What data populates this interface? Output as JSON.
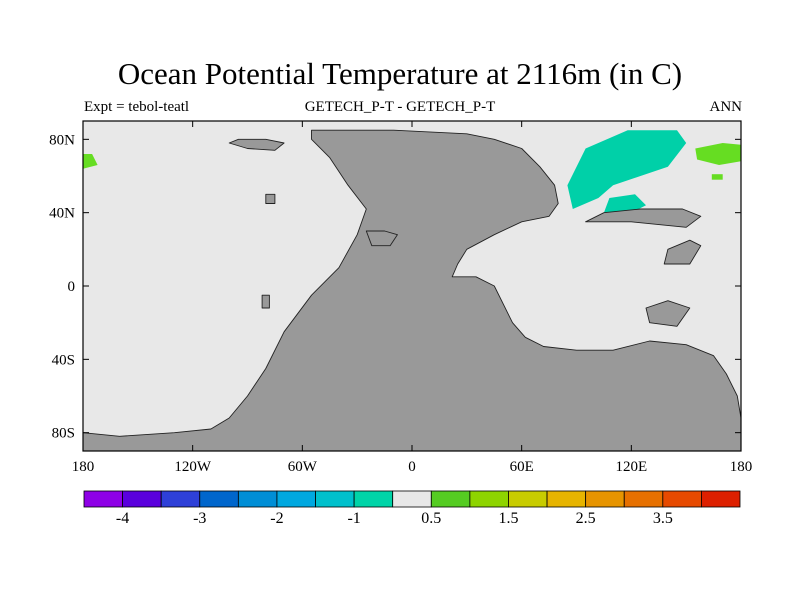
{
  "header": {
    "title": "Ocean Potential Temperature at 2116m (in C)",
    "left_label": "Expt = tebol-teatl",
    "center_label": "GETECH_P-T - GETECH_P-T",
    "right_label": "ANN"
  },
  "chart_data": {
    "type": "heatmap",
    "title": "Ocean Potential Temperature at 2116m (in C)",
    "xlim": [
      -180,
      180
    ],
    "ylim": [
      -90,
      90
    ],
    "x_ticks": [
      {
        "value": -180,
        "label": "180"
      },
      {
        "value": -120,
        "label": "120W"
      },
      {
        "value": -60,
        "label": "60W"
      },
      {
        "value": 0,
        "label": "0"
      },
      {
        "value": 60,
        "label": "60E"
      },
      {
        "value": 120,
        "label": "120E"
      },
      {
        "value": 180,
        "label": "180"
      }
    ],
    "y_ticks": [
      {
        "value": 80,
        "label": "80N"
      },
      {
        "value": 40,
        "label": "40N"
      },
      {
        "value": 0,
        "label": "0"
      },
      {
        "value": -40,
        "label": "40S"
      },
      {
        "value": -80,
        "label": "80S"
      }
    ],
    "background_color": "#e8e8e8",
    "land_color": "#999999",
    "land_regions": [
      [
        [
          -55,
          85
        ],
        [
          -10,
          85
        ],
        [
          30,
          83
        ],
        [
          45,
          80
        ],
        [
          60,
          75
        ],
        [
          70,
          65
        ],
        [
          78,
          55
        ],
        [
          80,
          45
        ],
        [
          75,
          38
        ],
        [
          60,
          35
        ],
        [
          45,
          28
        ],
        [
          30,
          20
        ],
        [
          25,
          12
        ],
        [
          22,
          5
        ],
        [
          35,
          5
        ],
        [
          45,
          0
        ],
        [
          50,
          -10
        ],
        [
          55,
          -20
        ],
        [
          62,
          -28
        ],
        [
          72,
          -33
        ],
        [
          90,
          -35
        ],
        [
          110,
          -35
        ],
        [
          130,
          -30
        ],
        [
          150,
          -32
        ],
        [
          165,
          -38
        ],
        [
          172,
          -48
        ],
        [
          178,
          -60
        ],
        [
          180,
          -72
        ],
        [
          180,
          -90
        ],
        [
          -180,
          -90
        ],
        [
          -180,
          -80
        ],
        [
          -160,
          -82
        ],
        [
          -130,
          -80
        ],
        [
          -110,
          -78
        ],
        [
          -100,
          -72
        ],
        [
          -90,
          -60
        ],
        [
          -80,
          -45
        ],
        [
          -70,
          -25
        ],
        [
          -55,
          -5
        ],
        [
          -40,
          10
        ],
        [
          -30,
          28
        ],
        [
          -25,
          42
        ],
        [
          -35,
          55
        ],
        [
          -45,
          70
        ],
        [
          -55,
          80
        ]
      ],
      [
        [
          -100,
          78
        ],
        [
          -90,
          75
        ],
        [
          -75,
          74
        ],
        [
          -70,
          78
        ],
        [
          -80,
          80
        ],
        [
          -95,
          80
        ]
      ],
      [
        [
          -25,
          30
        ],
        [
          -15,
          30
        ],
        [
          -8,
          28
        ],
        [
          -12,
          22
        ],
        [
          -22,
          22
        ]
      ],
      [
        [
          95,
          35
        ],
        [
          120,
          35
        ],
        [
          150,
          32
        ],
        [
          158,
          38
        ],
        [
          148,
          42
        ],
        [
          125,
          42
        ],
        [
          105,
          40
        ]
      ],
      [
        [
          130,
          -20
        ],
        [
          145,
          -22
        ],
        [
          152,
          -12
        ],
        [
          140,
          -8
        ],
        [
          128,
          -12
        ]
      ],
      [
        [
          138,
          12
        ],
        [
          152,
          12
        ],
        [
          158,
          22
        ],
        [
          152,
          25
        ],
        [
          140,
          20
        ]
      ],
      [
        [
          -82,
          -12
        ],
        [
          -78,
          -12
        ],
        [
          -78,
          -5
        ],
        [
          -82,
          -5
        ]
      ],
      [
        [
          -80,
          45
        ],
        [
          -75,
          45
        ],
        [
          -75,
          50
        ],
        [
          -80,
          50
        ]
      ]
    ],
    "anomaly_regions": [
      {
        "value": -0.5,
        "color": "#00d0a8",
        "points": [
          [
            95,
            75
          ],
          [
            118,
            85
          ],
          [
            145,
            85
          ],
          [
            150,
            78
          ],
          [
            140,
            65
          ],
          [
            125,
            60
          ],
          [
            110,
            55
          ],
          [
            102,
            48
          ],
          [
            88,
            42
          ],
          [
            85,
            55
          ]
        ]
      },
      {
        "value": -0.5,
        "color": "#00d0a8",
        "points": [
          [
            105,
            40
          ],
          [
            120,
            40
          ],
          [
            128,
            44
          ],
          [
            122,
            50
          ],
          [
            108,
            48
          ]
        ]
      },
      {
        "value": 0.5,
        "color": "#66dd22",
        "points": [
          [
            -180,
            72
          ],
          [
            -175,
            72
          ],
          [
            -172,
            66
          ],
          [
            -180,
            64
          ]
        ]
      },
      {
        "value": 0.5,
        "color": "#66dd22",
        "points": [
          [
            155,
            75
          ],
          [
            170,
            78
          ],
          [
            180,
            77
          ],
          [
            180,
            68
          ],
          [
            168,
            66
          ],
          [
            156,
            69
          ]
        ]
      },
      {
        "value": 0.5,
        "color": "#66dd22",
        "points": [
          [
            164,
            58
          ],
          [
            170,
            58
          ],
          [
            170,
            61
          ],
          [
            164,
            61
          ]
        ]
      }
    ],
    "colorbar": {
      "colors": [
        "#8e00e6",
        "#5a00dd",
        "#2e40d8",
        "#0066cc",
        "#008ed6",
        "#00a8e0",
        "#00c0cc",
        "#00d4a8",
        "#e8e8e8",
        "#55cc22",
        "#8ed400",
        "#c8cc00",
        "#e6b400",
        "#e69400",
        "#e67000",
        "#e64a00",
        "#dd2000"
      ],
      "labels": [
        "-4",
        "-3",
        "-2",
        "-1",
        "0.5",
        "1.5",
        "2.5",
        "3.5"
      ],
      "label_slots": [
        1,
        3,
        5,
        7,
        9,
        11,
        13,
        15
      ]
    }
  }
}
